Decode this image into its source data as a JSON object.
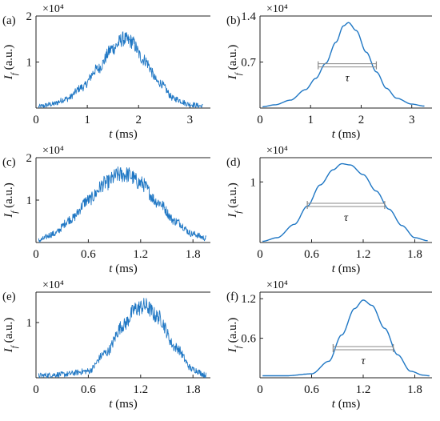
{
  "chart_data": [
    {
      "panel": "(a)",
      "type": "line",
      "style": "noisy",
      "xlabel": "t (ms)",
      "ylabel": "I_f (a.u.)",
      "y_multiplier": "×10⁴",
      "xlim": [
        0,
        3.4
      ],
      "ylim": [
        0,
        2
      ],
      "xticks": [
        0,
        1,
        2,
        3
      ],
      "xtick_labels": [
        "0",
        "1",
        "2",
        "3"
      ],
      "yticks": [
        1,
        2
      ],
      "ytick_labels": [
        "1",
        "2"
      ],
      "x": [
        0.05,
        0.3,
        0.6,
        0.9,
        1.2,
        1.5,
        1.7,
        1.85,
        2.1,
        2.4,
        2.7,
        3.0,
        3.25
      ],
      "y": [
        0.03,
        0.08,
        0.2,
        0.45,
        0.85,
        1.3,
        1.5,
        1.45,
        1.05,
        0.55,
        0.2,
        0.08,
        0.04
      ],
      "noise": 0.15
    },
    {
      "panel": "(b)",
      "type": "line",
      "style": "smooth",
      "xlabel": "t (ms)",
      "ylabel": "I_f (a.u.)",
      "y_multiplier": "×10⁴",
      "xlim": [
        0,
        3.4
      ],
      "ylim": [
        0,
        1.4
      ],
      "xticks": [
        0,
        1,
        2,
        3
      ],
      "xtick_labels": [
        "0",
        "1",
        "2",
        "3"
      ],
      "yticks": [
        0.7,
        1.4
      ],
      "ytick_labels": [
        "0.7",
        "1.4"
      ],
      "x": [
        0.05,
        0.3,
        0.6,
        0.9,
        1.1,
        1.3,
        1.5,
        1.65,
        1.75,
        1.9,
        2.1,
        2.3,
        2.5,
        2.7,
        3.0,
        3.25
      ],
      "y": [
        0.02,
        0.05,
        0.12,
        0.28,
        0.45,
        0.68,
        1.0,
        1.25,
        1.3,
        1.18,
        0.85,
        0.55,
        0.3,
        0.15,
        0.06,
        0.03
      ],
      "tau": {
        "label": "τ",
        "from": 1.15,
        "to": 2.3,
        "level": 0.65
      }
    },
    {
      "panel": "(c)",
      "type": "line",
      "style": "noisy",
      "xlabel": "t (ms)",
      "ylabel": "I_f (a.u.)",
      "y_multiplier": "×10⁴",
      "xlim": [
        0,
        2.0
      ],
      "ylim": [
        0,
        2
      ],
      "xticks": [
        0,
        0.6,
        1.2,
        1.8
      ],
      "xtick_labels": [
        "0",
        "0.6",
        "1.2",
        "1.8"
      ],
      "yticks": [
        1,
        2
      ],
      "ytick_labels": [
        "1",
        "2"
      ],
      "x": [
        0.03,
        0.2,
        0.4,
        0.6,
        0.8,
        0.95,
        1.05,
        1.2,
        1.4,
        1.6,
        1.8,
        1.95
      ],
      "y": [
        0.05,
        0.2,
        0.55,
        1.0,
        1.4,
        1.6,
        1.6,
        1.4,
        0.95,
        0.5,
        0.2,
        0.1
      ],
      "noise": 0.17
    },
    {
      "panel": "(d)",
      "type": "line",
      "style": "smooth",
      "xlabel": "t (ms)",
      "ylabel": "I_f (a.u.)",
      "y_multiplier": "×10⁴",
      "xlim": [
        0,
        2.0
      ],
      "ylim": [
        0,
        1.4
      ],
      "xticks": [
        0,
        0.6,
        1.2,
        1.8
      ],
      "xtick_labels": [
        "0",
        "0.6",
        "1.2",
        "1.8"
      ],
      "yticks": [
        1
      ],
      "ytick_labels": [
        "1"
      ],
      "x": [
        0.03,
        0.2,
        0.4,
        0.55,
        0.7,
        0.85,
        0.95,
        1.05,
        1.2,
        1.35,
        1.5,
        1.65,
        1.8,
        1.95
      ],
      "y": [
        0.02,
        0.08,
        0.3,
        0.6,
        0.95,
        1.2,
        1.3,
        1.28,
        1.12,
        0.85,
        0.55,
        0.28,
        0.08,
        0.03
      ],
      "tau": {
        "label": "τ",
        "from": 0.55,
        "to": 1.45,
        "level": 0.62
      }
    },
    {
      "panel": "(e)",
      "type": "line",
      "style": "noisy",
      "xlabel": "t (ms)",
      "ylabel": "I_f (a.u.)",
      "y_multiplier": "×10⁴",
      "xlim": [
        0,
        2.0
      ],
      "ylim": [
        0,
        1.55
      ],
      "xticks": [
        0,
        0.6,
        1.2,
        1.8
      ],
      "xtick_labels": [
        "0",
        "0.6",
        "1.2",
        "1.8"
      ],
      "yticks": [
        1
      ],
      "ytick_labels": [
        "1"
      ],
      "x": [
        0.03,
        0.3,
        0.6,
        0.8,
        1.0,
        1.15,
        1.25,
        1.4,
        1.6,
        1.8,
        1.95
      ],
      "y": [
        0.04,
        0.06,
        0.12,
        0.45,
        0.95,
        1.25,
        1.3,
        1.1,
        0.55,
        0.15,
        0.05
      ],
      "noise": 0.13
    },
    {
      "panel": "(f)",
      "type": "line",
      "style": "smooth",
      "xlabel": "t (ms)",
      "ylabel": "I_f (a.u.)",
      "y_multiplier": "×10⁴",
      "xlim": [
        0,
        2.0
      ],
      "ylim": [
        0,
        1.3
      ],
      "xticks": [
        0,
        0.6,
        1.2,
        1.8
      ],
      "xtick_labels": [
        "0",
        "0.6",
        "1.2",
        "1.8"
      ],
      "yticks": [
        0.6,
        1.2
      ],
      "ytick_labels": [
        "0.6",
        "1.2"
      ],
      "x": [
        0.03,
        0.3,
        0.6,
        0.8,
        0.95,
        1.1,
        1.2,
        1.3,
        1.45,
        1.6,
        1.75,
        1.9,
        1.97
      ],
      "y": [
        0.03,
        0.03,
        0.06,
        0.25,
        0.65,
        1.05,
        1.18,
        1.1,
        0.75,
        0.35,
        0.1,
        0.04,
        0.03
      ],
      "tau": {
        "label": "τ",
        "from": 0.85,
        "to": 1.55,
        "level": 0.45
      }
    }
  ],
  "colors": {
    "line": "#1f77c4",
    "axis": "#222222",
    "tau_bar": "#888888"
  }
}
